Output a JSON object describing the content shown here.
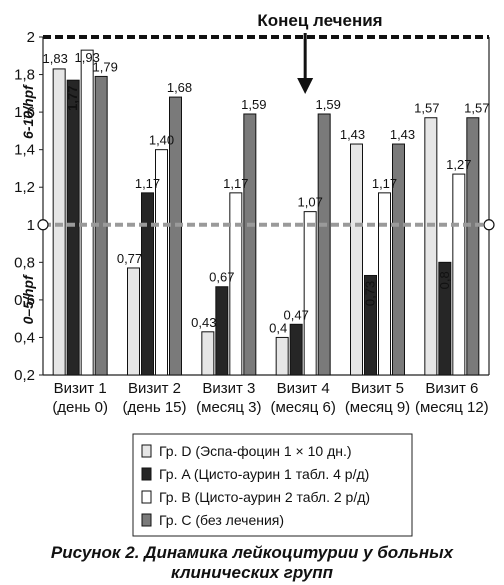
{
  "chart_data": {
    "type": "bar",
    "categories": [
      [
        "Визит 1",
        "(день 0)"
      ],
      [
        "Визит 2",
        "(день 15)"
      ],
      [
        "Визит 3",
        "(месяц 3)"
      ],
      [
        "Визит 4",
        "(месяц 6)"
      ],
      [
        "Визит 5",
        "(месяц 9)"
      ],
      [
        "Визит 6",
        "(месяц 12)"
      ]
    ],
    "series": [
      {
        "name": "Гр. D (Эспа-фоцин 1 × 10 дн.)",
        "color": "#e6e6e6",
        "values": [
          1.83,
          0.77,
          0.43,
          0.4,
          1.43,
          1.57
        ],
        "labels": [
          "1,83",
          "0,77",
          "0,43",
          "0,4",
          "1,43",
          "1,57"
        ]
      },
      {
        "name": "Гр. A (Цисто-аурин 1 табл. 4 р/д)",
        "color": "#262626",
        "values": [
          1.77,
          1.17,
          0.67,
          0.47,
          0.73,
          0.8
        ],
        "labels": [
          "1,77",
          "1,17",
          "0,67",
          "0,47",
          "0,73",
          "0,8"
        ]
      },
      {
        "name": "Гр. B (Цисто-аурин 2 табл. 2 р/д)",
        "color": "#ffffff",
        "values": [
          1.93,
          1.4,
          1.17,
          1.07,
          1.17,
          1.27
        ],
        "labels": [
          "1,93",
          "1,40",
          "1,17",
          "1,07",
          "1,17",
          "1,27"
        ]
      },
      {
        "name": "Гр. C (без лечения)",
        "color": "#7a7a7a",
        "values": [
          1.79,
          1.68,
          1.59,
          1.59,
          1.43,
          1.57
        ],
        "labels": [
          "1,79",
          "1,68",
          "1,59",
          "1,59",
          "1,43",
          "1,57"
        ]
      }
    ],
    "yticks": [
      "0,2",
      "0,4",
      "0,6",
      "0,8",
      "1",
      "1,2",
      "1,4",
      "1,6",
      "1,8",
      "2"
    ],
    "ylim": [
      0.2,
      2
    ],
    "ylabel_upper": "6-10/hpf",
    "ylabel_lower": "0–5/hpf",
    "reference_lines": [
      2,
      1
    ],
    "annotation": "Конец лечения",
    "annotation_target_category": 3,
    "legend_position": "bottom"
  },
  "caption": {
    "line1": "Рисунок 2. Динамика лейкоцитурии у больных",
    "line2": "клинических групп"
  }
}
